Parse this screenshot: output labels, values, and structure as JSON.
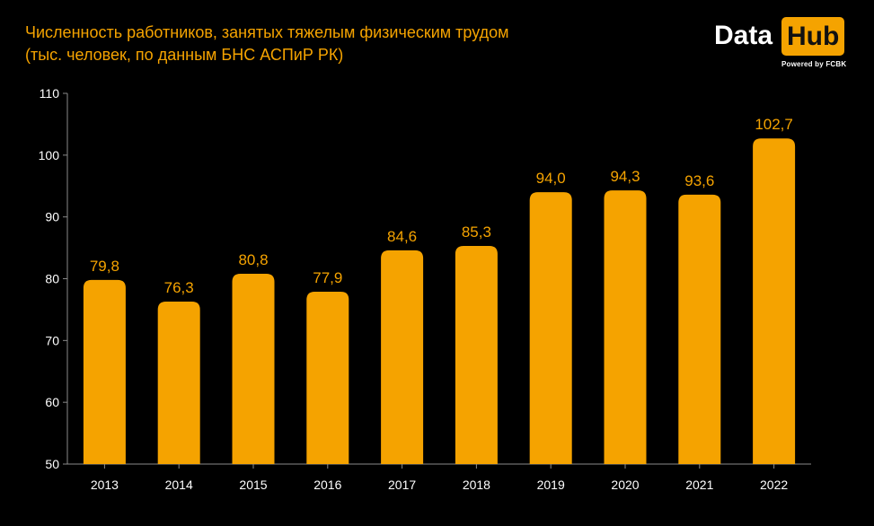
{
  "title_line1": "Численность работников, занятых тяжелым физическим трудом",
  "title_line2": "(тыс. человек, по данным БНС АСПиР РК)",
  "logo": {
    "data_text": "Data",
    "hub_text": "Hub",
    "sub_text": "Powered by FCBK"
  },
  "colors": {
    "accent": "#f5a300",
    "background": "#000000",
    "text": "#ffffff"
  },
  "chart_data": {
    "type": "bar",
    "categories": [
      "2013",
      "2014",
      "2015",
      "2016",
      "2017",
      "2018",
      "2019",
      "2020",
      "2021",
      "2022"
    ],
    "values": [
      79.8,
      76.3,
      80.8,
      77.9,
      84.6,
      85.3,
      94.0,
      94.3,
      93.6,
      102.7
    ],
    "data_labels": [
      "79,8",
      "76,3",
      "80,8",
      "77,9",
      "84,6",
      "85,3",
      "94,0",
      "94,3",
      "93,6",
      "102,7"
    ],
    "yticks": [
      50,
      60,
      70,
      80,
      90,
      100,
      110
    ],
    "ylim": [
      50,
      110
    ],
    "xlabel": "",
    "ylabel": "",
    "grid": false,
    "legend": "none"
  }
}
